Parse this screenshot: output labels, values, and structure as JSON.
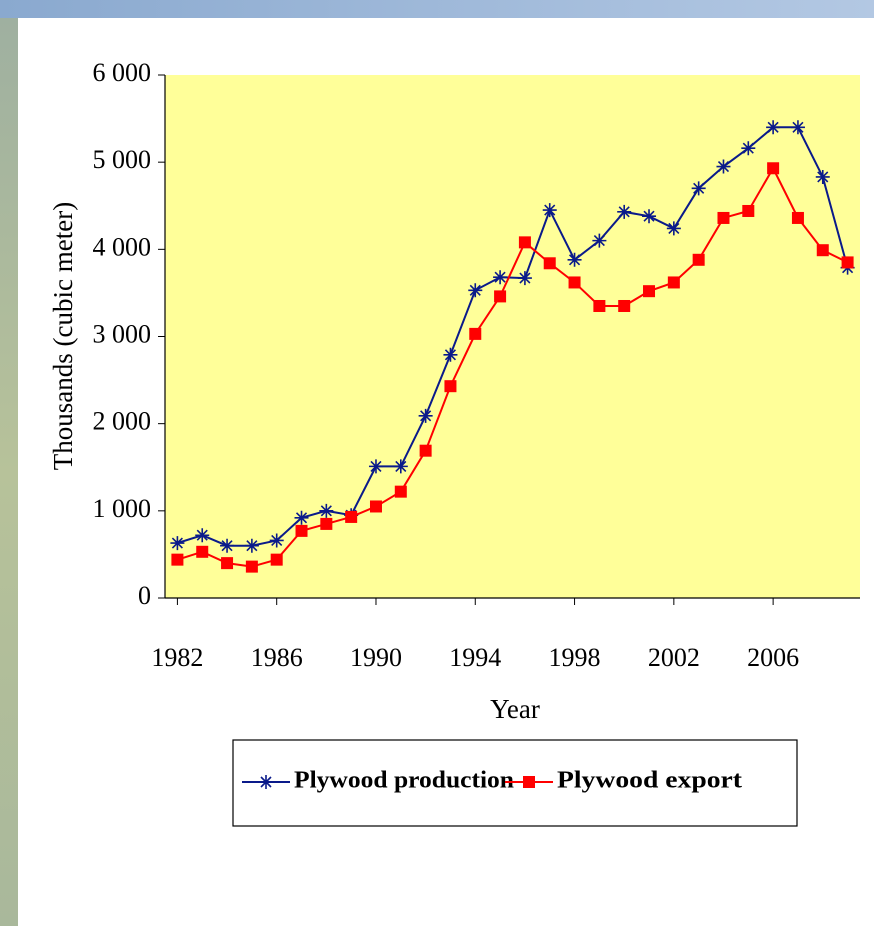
{
  "chart_data": {
    "type": "line",
    "x_label": "Year",
    "y_label": "Thousands (cubic meter)",
    "x": [
      1982,
      1983,
      1984,
      1985,
      1986,
      1987,
      1988,
      1989,
      1990,
      1991,
      1992,
      1993,
      1994,
      1995,
      1996,
      1997,
      1998,
      1999,
      2000,
      2001,
      2002,
      2003,
      2004,
      2005,
      2006,
      2007,
      2008,
      2009
    ],
    "series": [
      {
        "name": "Plywood production",
        "color": "#0a1a8a",
        "marker": "asterisk",
        "values": [
          630,
          720,
          600,
          600,
          660,
          920,
          1000,
          950,
          1510,
          1510,
          2090,
          2790,
          3530,
          3680,
          3670,
          4450,
          3880,
          4100,
          4430,
          4380,
          4240,
          4700,
          4950,
          5160,
          5400,
          5400,
          4830,
          3790
        ]
      },
      {
        "name": "Plywood export",
        "color": "#ff0000",
        "marker": "square",
        "values": [
          440,
          530,
          400,
          360,
          440,
          770,
          850,
          930,
          1050,
          1220,
          1690,
          2430,
          3030,
          3460,
          4080,
          3840,
          3620,
          3350,
          3350,
          3520,
          3620,
          3880,
          4360,
          4440,
          4930,
          4360,
          3990,
          3850
        ]
      }
    ],
    "xlim": [
      1981.5,
      2009.5
    ],
    "xticks": [
      1982,
      1986,
      1990,
      1994,
      1998,
      2002,
      2006
    ],
    "ylim": [
      0,
      6000
    ],
    "yticks": [
      0,
      {
        "value": 1000,
        "label": "1 000"
      },
      {
        "value": 2000,
        "label": "2 000"
      },
      {
        "value": 3000,
        "label": "3 000"
      },
      {
        "value": 4000,
        "label": "4 000"
      },
      {
        "value": 5000,
        "label": "5 000"
      },
      {
        "value": 6000,
        "label": "6 000"
      }
    ],
    "plot_background": "#ffff99"
  }
}
